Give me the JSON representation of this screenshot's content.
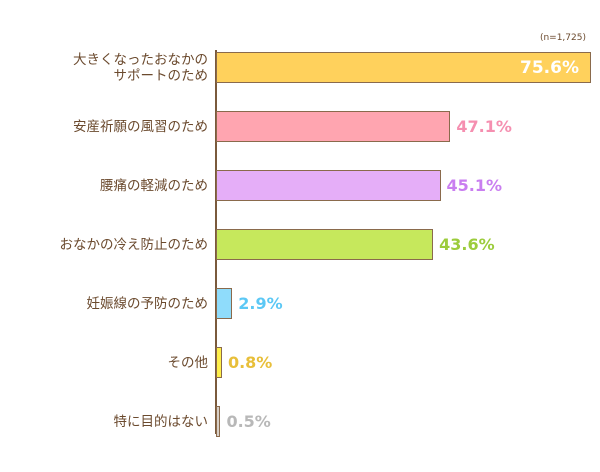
{
  "chart_data": {
    "type": "bar",
    "orientation": "horizontal",
    "title": "",
    "note": "(n=1,725)",
    "xlabel": "",
    "ylabel": "",
    "xlim": [
      0,
      80
    ],
    "grid": false,
    "legend": null,
    "categories": [
      "大きくなったおなかの\nサポートのため",
      "安産祈願の風習のため",
      "腰痛の軽減のため",
      "おなかの冷え防止のため",
      "妊娠線の予防のため",
      "その他",
      "特に目的はない"
    ],
    "values": [
      75.6,
      47.1,
      45.1,
      43.6,
      2.9,
      0.8,
      0.5
    ],
    "value_labels": [
      "75.6%",
      "47.1%",
      "45.1%",
      "43.6%",
      "2.9%",
      "0.8%",
      "0.5%"
    ],
    "bar_colors": [
      "#ffd15c",
      "#ffa5b0",
      "#e5aef8",
      "#c6e85c",
      "#8fdcfb",
      "#fff04a",
      "#d8d0c8"
    ],
    "label_colors": [
      "#ffffff",
      "#f58fb0",
      "#c97ef0",
      "#9ccc3c",
      "#5cc8f5",
      "#e8bf3a",
      "#b8b8b8"
    ]
  },
  "note": "(n=1,725)"
}
